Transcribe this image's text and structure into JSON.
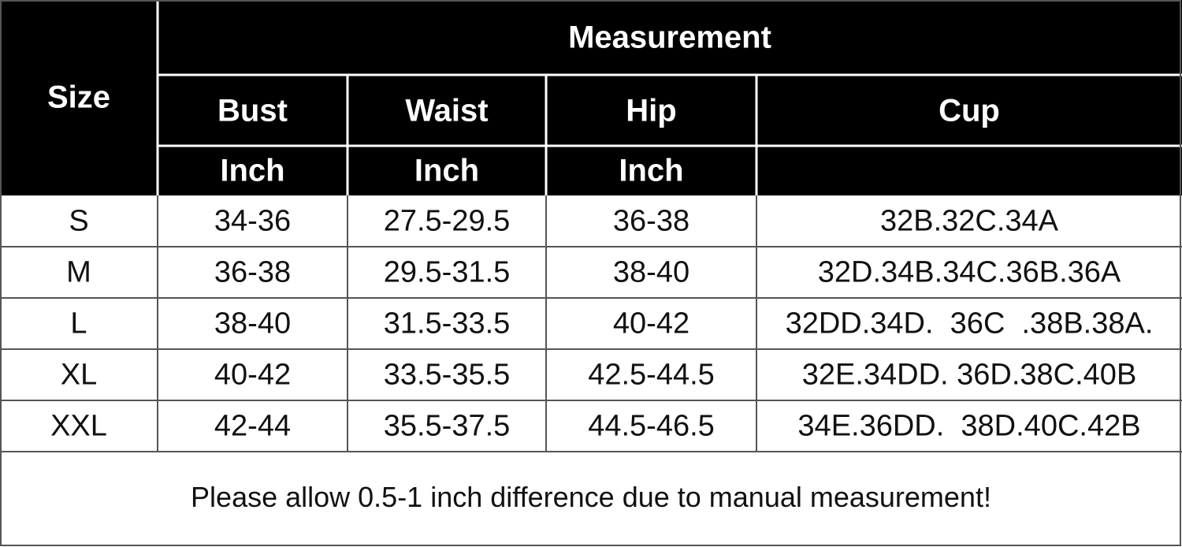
{
  "table": {
    "header": {
      "size": "Size",
      "measurement": "Measurement",
      "columns": [
        "Bust",
        "Waist",
        "Hip",
        "Cup"
      ],
      "units": [
        "Inch",
        "Inch",
        "Inch"
      ]
    },
    "rows": [
      [
        "S",
        "34-36",
        "27.5-29.5",
        "36-38",
        "32B.32C.34A"
      ],
      [
        "M",
        "36-38",
        "29.5-31.5",
        "38-40",
        "32D.34B.34C.36B.36A"
      ],
      [
        "L",
        "38-40",
        "31.5-33.5",
        "40-42",
        "32DD.34D.  36C  .38B.38A."
      ],
      [
        "XL",
        "40-42",
        "33.5-35.5",
        "42.5-44.5",
        "32E.34DD. 36D.38C.40B"
      ],
      [
        "XXL",
        "42-44",
        "35.5-37.5",
        "44.5-46.5",
        "34E.36DD.  38D.40C.42B"
      ]
    ],
    "note": "Please allow 0.5-1 inch difference due to manual measurement!"
  }
}
